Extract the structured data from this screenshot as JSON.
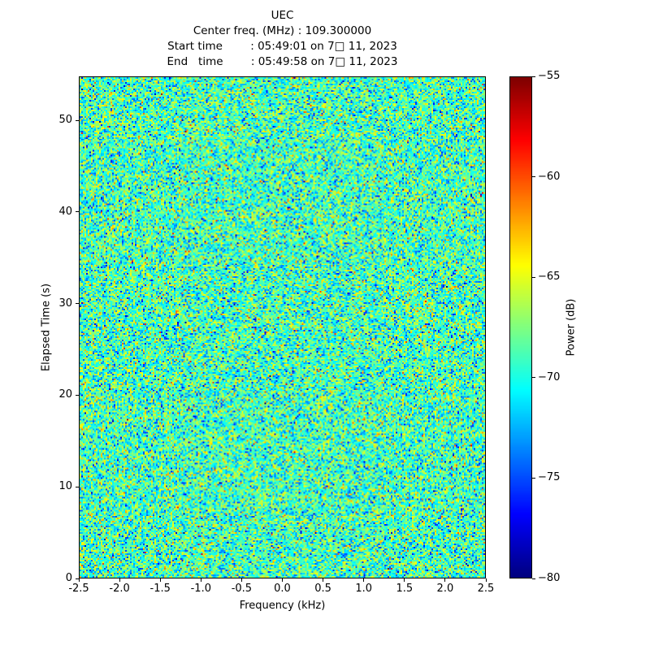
{
  "chart_data": {
    "type": "heatmap",
    "title": "UEC",
    "info_lines": [
      "Center freq. (MHz) : 109.300000",
      "Start time        : 05:49:01 on 7□ 11, 2023",
      "End   time        : 05:49:58 on 7□ 11, 2023"
    ],
    "xlabel": "Frequency (kHz)",
    "ylabel": "Elapsed Time (s)",
    "xlim": [
      -2.5,
      2.5
    ],
    "ylim": [
      0,
      54.8
    ],
    "x_ticks": {
      "values": [
        -2.5,
        -2.0,
        -1.5,
        -1.0,
        -0.5,
        0.0,
        0.5,
        1.0,
        1.5,
        2.0,
        2.5
      ],
      "labels": [
        "-2.5",
        "-2.0",
        "-1.5",
        "-1.0",
        "-0.5",
        "0.0",
        "0.5",
        "1.0",
        "1.5",
        "2.0",
        "2.5"
      ]
    },
    "y_ticks": {
      "values": [
        0,
        10,
        20,
        30,
        40,
        50
      ],
      "labels": [
        "0",
        "10",
        "20",
        "30",
        "40",
        "50"
      ]
    },
    "colorbar": {
      "label": "Power (dB)",
      "min": -80,
      "max": -55,
      "colormap": "jet",
      "ticks": {
        "values": [
          -55,
          -60,
          -65,
          -70,
          -75,
          -80
        ],
        "labels": [
          "−55",
          "−60",
          "−65",
          "−70",
          "−75",
          "−80"
        ]
      }
    },
    "noise": {
      "description": "Uniform random spectral noise across full band and duration; no visible signal. Dominant power near -69 dB (cyan-green) with sparse yellow/orange peaks (~-62 dB) and blue dips (~-76 dB).",
      "mean_db": -69,
      "std_db": 3.0,
      "rows": 309,
      "cols": 250,
      "seed": 20230711
    }
  }
}
